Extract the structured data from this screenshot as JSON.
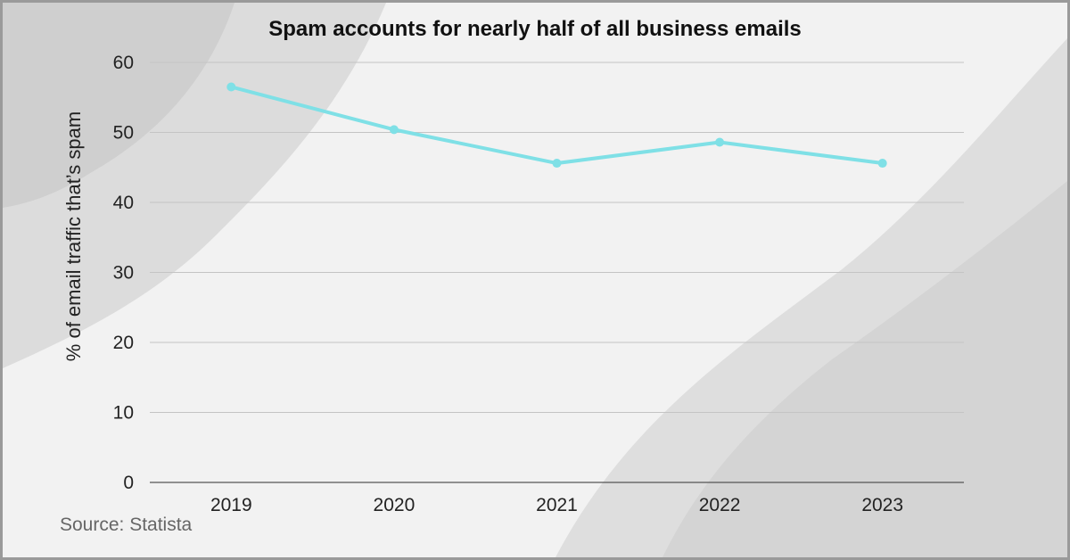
{
  "chart_data": {
    "type": "line",
    "title": "Spam accounts for nearly half of all business emails",
    "ylabel": "% of email traffic that’s spam",
    "xlabel": "",
    "categories": [
      "2019",
      "2020",
      "2021",
      "2022",
      "2023"
    ],
    "series": [
      {
        "values": [
          56.5,
          50.4,
          45.6,
          48.6,
          45.6
        ]
      }
    ],
    "ylim": [
      0,
      60
    ],
    "yticks": [
      0,
      10,
      20,
      30,
      40,
      50,
      60
    ],
    "grid": true,
    "legend": "none",
    "line_color": "#7fe0e6"
  },
  "source": "Source: Statista"
}
